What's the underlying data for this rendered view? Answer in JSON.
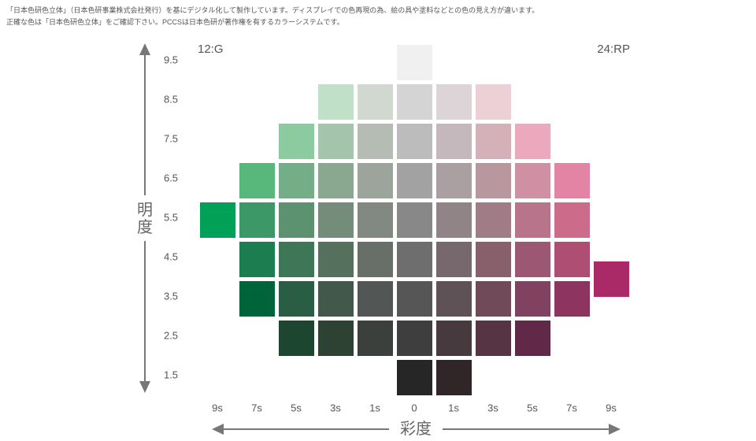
{
  "notes": [
    "「日本色研色立体」（日本色研事業株式会社発行）を基にデジタル化して製作しています。ディスプレイでの色再現の為、絵の具や塗料などとの色の見え方が違います。",
    "正確な色は「日本色研色立体」をご確認下さい。PCCSは日本色研が著作権を有するカラーシステムです。"
  ],
  "corner_left": "12:G",
  "corner_right": "24:RP",
  "y_axis": {
    "title": "明度"
  },
  "x_axis": {
    "title": "彩度",
    "labels": [
      "9s",
      "7s",
      "5s",
      "3s",
      "1s",
      "0",
      "1s",
      "3s",
      "5s",
      "7s",
      "9s"
    ]
  },
  "rows": [
    {
      "label": "9.5",
      "colors": [
        null,
        null,
        null,
        null,
        null,
        "#f0f0f0",
        null,
        null,
        null,
        null,
        null
      ]
    },
    {
      "label": "8.5",
      "colors": [
        null,
        null,
        null,
        "#c0e0c8",
        "#d0d8d0",
        "#d4d4d4",
        "#dcd4d6",
        "#ecd0d6",
        null,
        null,
        null
      ]
    },
    {
      "label": "7.5",
      "colors": [
        null,
        null,
        "#8ccaa0",
        "#a4c4ac",
        "#b4bcb4",
        "#bcbcbc",
        "#c4b8bc",
        "#d4b0b8",
        "#eca8bc",
        null,
        null
      ]
    },
    {
      "label": "6.5",
      "colors": [
        null,
        "#58b87c",
        "#74ae88",
        "#8aa890",
        "#9ca49c",
        "#a2a2a2",
        "#aaa0a2",
        "#b8989e",
        "#d090a4",
        "#e484a4",
        null
      ]
    },
    {
      "label": "5.5",
      "colors": [
        "#00a058",
        "#3c9866",
        "#5c9270",
        "#748c7a",
        "#828882",
        "#888888",
        "#908486",
        "#a07c86",
        "#b8748a",
        "#cc6c8a",
        null
      ]
    },
    {
      "label": "4.5",
      "colors": [
        null,
        "#1c7e50",
        "#3e7658",
        "#56705e",
        "#686e68",
        "#6e6e6e",
        "#76686c",
        "#88606c",
        "#9c5872",
        "#ae4e72",
        null
      ]
    },
    {
      "label": "3.5",
      "colors": [
        null,
        "#00643a",
        "#2a5e44",
        "#42584a",
        "#525654",
        "#565656",
        "#5e5256",
        "#704a58",
        "#804260",
        "#8e3460",
        null
      ]
    },
    {
      "label": "2.5",
      "colors": [
        null,
        null,
        "#1c4630",
        "#2e4234",
        "#3c403c",
        "#3e3e3e",
        "#463a3e",
        "#563444",
        "#622848",
        null,
        null
      ]
    },
    {
      "label": "1.5",
      "colors": [
        null,
        null,
        null,
        null,
        null,
        "#262626",
        "#302628",
        null,
        null,
        null,
        null
      ]
    }
  ],
  "extra_cell": {
    "color": "#aa2a68"
  }
}
